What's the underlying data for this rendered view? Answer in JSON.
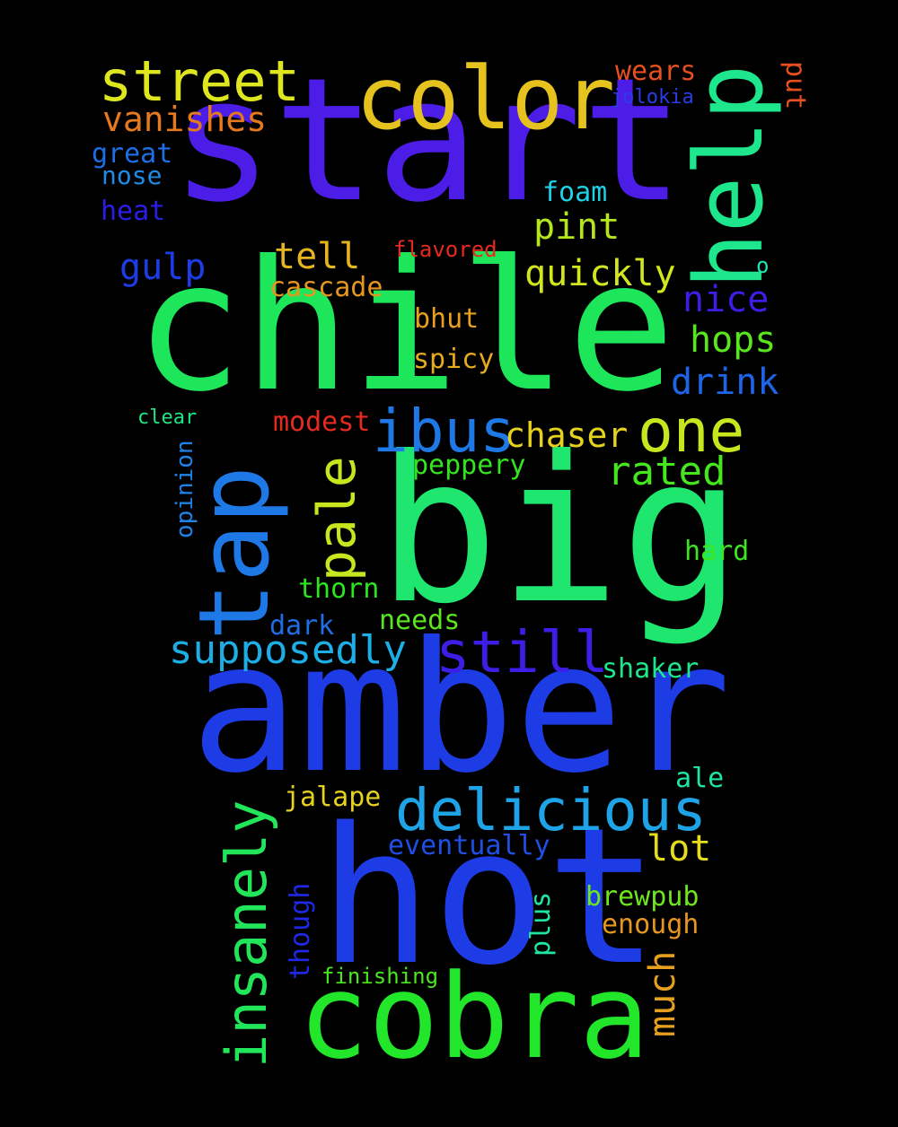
{
  "background": "#000000",
  "words": [
    {
      "text": "start",
      "color": "#4c1de6"
    },
    {
      "text": "chile",
      "color": "#1ee65a"
    },
    {
      "text": "big",
      "color": "#1ee66e"
    },
    {
      "text": "amber",
      "color": "#1e3ce6"
    },
    {
      "text": "hot",
      "color": "#1e3ce6"
    },
    {
      "text": "cobra",
      "color": "#22e62a"
    },
    {
      "text": "color",
      "color": "#e6c21e"
    },
    {
      "text": "street",
      "color": "#dde61e"
    },
    {
      "text": "help",
      "color": "#1ee68c"
    },
    {
      "text": "tap",
      "color": "#1e78e6"
    },
    {
      "text": "ibus",
      "color": "#1e78e6"
    },
    {
      "text": "one",
      "color": "#c8e61e"
    },
    {
      "text": "pale",
      "color": "#c8e61e"
    },
    {
      "text": "insanely",
      "color": "#22e65a"
    },
    {
      "text": "delicious",
      "color": "#1ea4e6"
    },
    {
      "text": "supposedly",
      "color": "#1eaee6"
    },
    {
      "text": "still",
      "color": "#3c1ee6"
    },
    {
      "text": "rated",
      "color": "#46e61e"
    },
    {
      "text": "chaser",
      "color": "#e6d21e"
    },
    {
      "text": "vanishes",
      "color": "#e6781e"
    },
    {
      "text": "wears",
      "color": "#e6501e"
    },
    {
      "text": "jolokia",
      "color": "#2a3ce6"
    },
    {
      "text": "put",
      "color": "#e6501e"
    },
    {
      "text": "great",
      "color": "#1e6ee6"
    },
    {
      "text": "nose",
      "color": "#1e8ce6"
    },
    {
      "text": "heat",
      "color": "#2a1ee6"
    },
    {
      "text": "foam",
      "color": "#1ed2e6"
    },
    {
      "text": "pint",
      "color": "#b4e61e"
    },
    {
      "text": "tell",
      "color": "#e6b41e"
    },
    {
      "text": "flavored",
      "color": "#e62a1e"
    },
    {
      "text": "quickly",
      "color": "#d2e61e"
    },
    {
      "text": "gulp",
      "color": "#1e3ce6"
    },
    {
      "text": "cascade",
      "color": "#e6961e"
    },
    {
      "text": "nice",
      "color": "#3c1ee6"
    },
    {
      "text": "bhut",
      "color": "#e6a01e"
    },
    {
      "text": "hops",
      "color": "#5ae61e"
    },
    {
      "text": "spicy",
      "color": "#e6aa1e"
    },
    {
      "text": "drink",
      "color": "#1e64e6"
    },
    {
      "text": "clear",
      "color": "#1ee682"
    },
    {
      "text": "modest",
      "color": "#e62a1e"
    },
    {
      "text": "peppery",
      "color": "#32e61e"
    },
    {
      "text": "opinion",
      "color": "#1e82e6"
    },
    {
      "text": "hard",
      "color": "#3ce61e"
    },
    {
      "text": "thorn",
      "color": "#2ae61e"
    },
    {
      "text": "dark",
      "color": "#1e6ee6"
    },
    {
      "text": "needs",
      "color": "#5ae61e"
    },
    {
      "text": "shaker",
      "color": "#1ee68c"
    },
    {
      "text": "ale",
      "color": "#1ee6a0"
    },
    {
      "text": "jalape",
      "color": "#e6d21e"
    },
    {
      "text": "eventually",
      "color": "#1e50e6"
    },
    {
      "text": "lot",
      "color": "#e6dc1e"
    },
    {
      "text": "brewpub",
      "color": "#6ee61e"
    },
    {
      "text": "enough",
      "color": "#e6961e"
    },
    {
      "text": "plus",
      "color": "#1ee6a0"
    },
    {
      "text": "though",
      "color": "#1e28e6"
    },
    {
      "text": "much",
      "color": "#e6a01e"
    },
    {
      "text": "finishing",
      "color": "#4ae61e"
    },
    {
      "text": "o",
      "color": "#1ee6b4"
    }
  ]
}
